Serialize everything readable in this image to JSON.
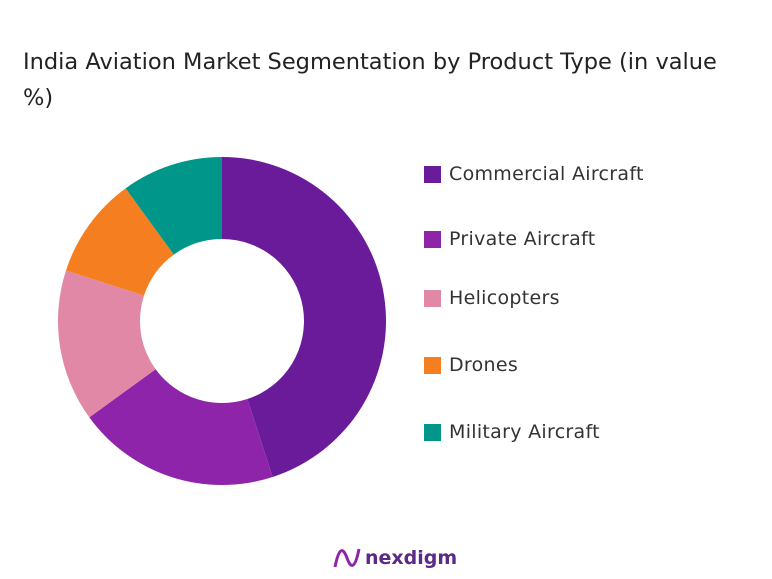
{
  "chart_data": {
    "type": "pie",
    "donut": true,
    "title": "India Aviation Market Segmentation by Product Type (in value %)",
    "categories": [
      "Commercial Aircraft",
      "Private Aircraft",
      "Helicopters",
      "Drones",
      "Military Aircraft"
    ],
    "values": [
      45,
      20,
      15,
      10,
      10
    ],
    "colors": [
      "#6a1b9a",
      "#8e24aa",
      "#e088a6",
      "#f57f20",
      "#00968a"
    ],
    "legend": "right"
  },
  "logo": {
    "text": "nexdigm"
  }
}
